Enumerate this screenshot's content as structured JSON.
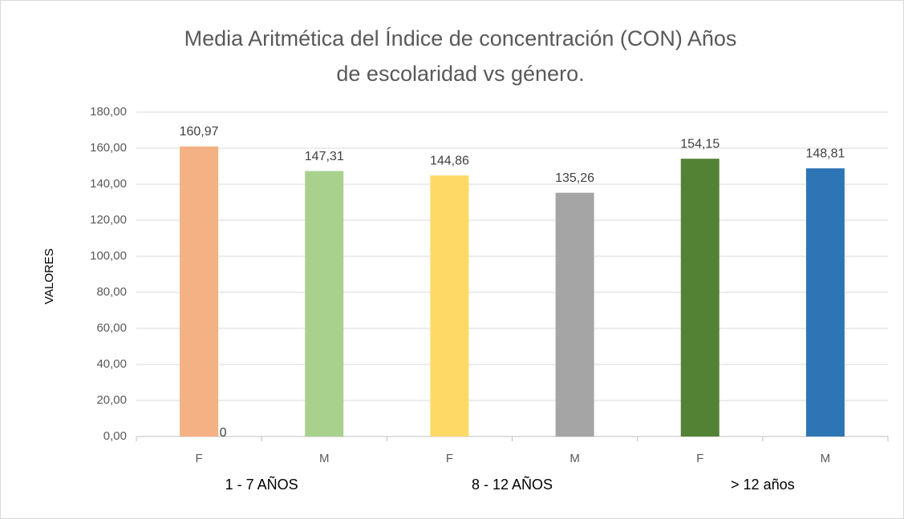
{
  "chart_data": {
    "type": "bar",
    "title": [
      "Media Aritmética del Índice de concentración (CON) Años",
      "de escolaridad vs género."
    ],
    "y_label": "VALORES",
    "categories": [
      "F",
      "M",
      "F",
      "M",
      "F",
      "M"
    ],
    "groups": [
      "1 - 7 AÑOS",
      "8 - 12 AÑOS",
      "> 12 años"
    ],
    "series": [
      {
        "values": [
          160.97,
          147.31,
          144.86,
          135.26,
          154.15,
          148.81
        ],
        "value_labels": [
          "160,97",
          "147,31",
          "144,86",
          "135,26",
          "154,15",
          "148,81"
        ],
        "colors": [
          "#f4b183",
          "#a9d18e",
          "#ffd966",
          "#a5a5a5",
          "#548235",
          "#2e75b6"
        ]
      },
      {
        "values": [
          0,
          null,
          null,
          null,
          null,
          null
        ],
        "value_labels": [
          "0",
          null,
          null,
          null,
          null,
          null
        ]
      }
    ],
    "ylim": [
      0,
      180
    ],
    "yticks": [
      {
        "value": 0,
        "label": "0,00"
      },
      {
        "value": 20,
        "label": "20,00"
      },
      {
        "value": 40,
        "label": "40,00"
      },
      {
        "value": 60,
        "label": "60,00"
      },
      {
        "value": 80,
        "label": "80,00"
      },
      {
        "value": 100,
        "label": "100,00"
      },
      {
        "value": 120,
        "label": "120,00"
      },
      {
        "value": 140,
        "label": "140,00"
      },
      {
        "value": 160,
        "label": "160,00"
      },
      {
        "value": 180,
        "label": "180,00"
      }
    ],
    "grid": true
  }
}
